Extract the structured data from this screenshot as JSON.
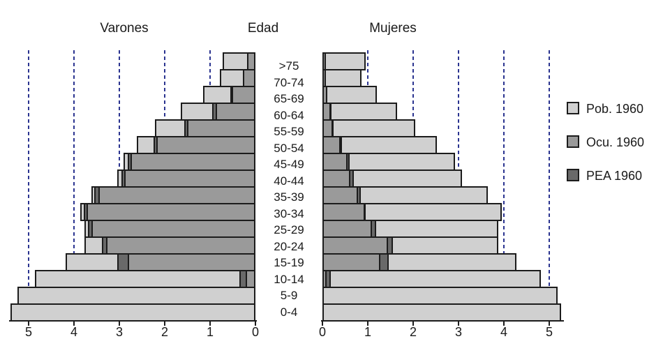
{
  "figure": {
    "title_left": "Varones",
    "title_center": "Edad",
    "title_right": "Mujeres"
  },
  "chart_data": {
    "type": "bar",
    "subtype": "population-pyramid-overlaid-bars",
    "title": "",
    "xlabel": "",
    "ylabel": "Edad",
    "grid": "dashed vertical gridlines at 1,2,3,4,5 on both sides",
    "legend_position": "right",
    "categories_top_to_bottom": [
      ">75",
      "70-74",
      "65-69",
      "60-64",
      "55-59",
      "50-54",
      "45-49",
      "40-44",
      "35-39",
      "30-34",
      "25-29",
      "20-24",
      "15-19",
      "10-14",
      "5-9",
      "0-4"
    ],
    "axis": {
      "left_ticks": [
        "5",
        "4",
        "3",
        "2",
        "1",
        "0"
      ],
      "right_ticks": [
        "0",
        "1",
        "2",
        "3",
        "4",
        "5"
      ],
      "xlim": [
        0,
        5.5
      ],
      "gridlines_at": [
        1,
        2,
        3,
        4,
        5
      ]
    },
    "series": {
      "varones": {
        "pob": [
          0.72,
          0.79,
          1.16,
          1.65,
          2.21,
          2.62,
          2.9,
          3.04,
          3.61,
          3.86,
          3.77,
          3.77,
          4.18,
          4.86,
          5.25,
          5.4
        ],
        "pea": [
          0.19,
          0.28,
          0.55,
          0.96,
          1.57,
          2.25,
          2.81,
          2.95,
          3.55,
          3.78,
          3.69,
          3.39,
          3.04,
          0.35,
          0,
          0
        ],
        "ocu": [
          0.18,
          0.27,
          0.52,
          0.88,
          1.51,
          2.18,
          2.75,
          2.89,
          3.46,
          3.72,
          3.61,
          3.29,
          2.82,
          0.22,
          0,
          0
        ]
      },
      "mujeres": {
        "pob": [
          0.95,
          0.86,
          1.2,
          1.65,
          2.05,
          2.52,
          2.93,
          3.08,
          3.64,
          3.95,
          3.87,
          3.87,
          4.28,
          4.82,
          5.18,
          5.26
        ],
        "pea": [
          0.08,
          0.08,
          0.11,
          0.2,
          0.25,
          0.43,
          0.6,
          0.69,
          0.85,
          0.96,
          1.18,
          1.56,
          1.46,
          0.18,
          0,
          0
        ],
        "ocu": [
          0.07,
          0.07,
          0.1,
          0.19,
          0.23,
          0.4,
          0.56,
          0.61,
          0.79,
          0.94,
          1.09,
          1.45,
          1.28,
          0.09,
          0,
          0
        ]
      }
    },
    "legend": [
      {
        "key": "pob",
        "label": "Pob. 1960",
        "color": "#d0d0d0"
      },
      {
        "key": "ocu",
        "label": "Ocu. 1960",
        "color": "#9a9a9a"
      },
      {
        "key": "pea",
        "label": "PEA 1960",
        "color": "#696969"
      }
    ],
    "colors": {
      "pob": "#d0d0d0",
      "ocu": "#9a9a9a",
      "pea": "#696969",
      "border": "#1c1c1c",
      "gridline": "#2b3490",
      "text": "#1a1a1a"
    }
  }
}
